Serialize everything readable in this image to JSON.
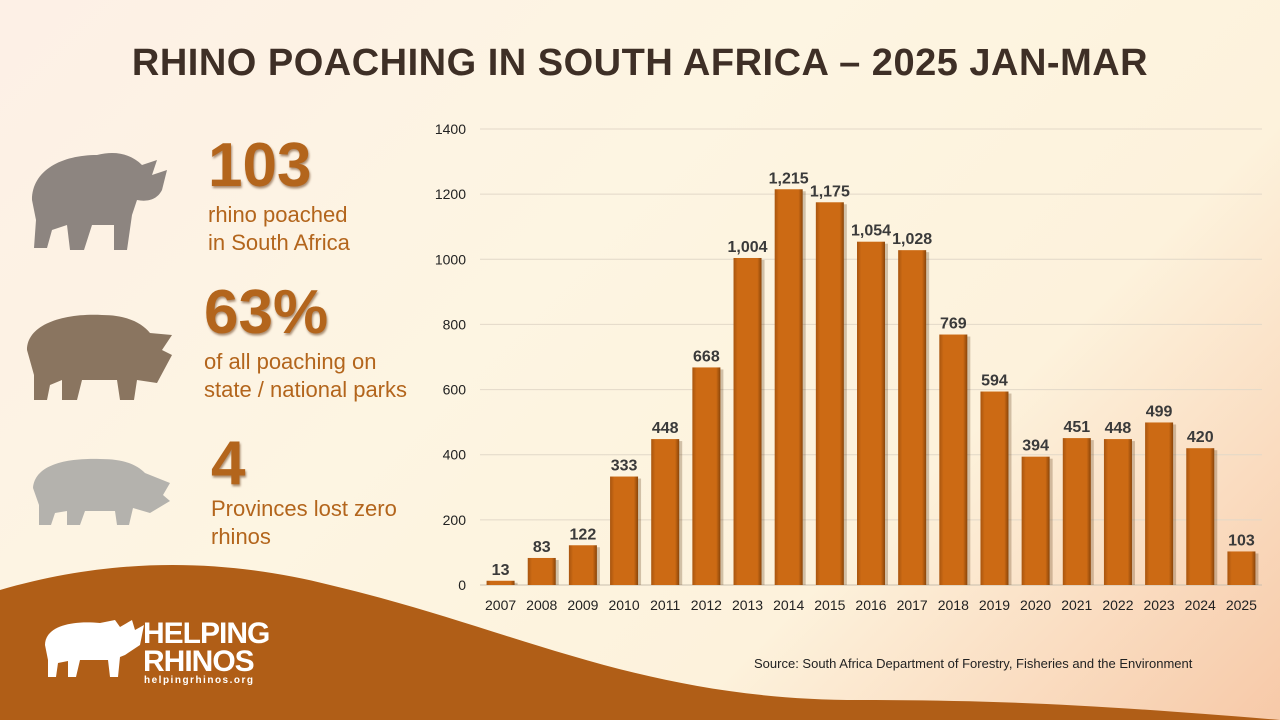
{
  "title": "RHINO POACHING IN SOUTH AFRICA – 2025 JAN-MAR",
  "stats": [
    {
      "value": "103",
      "line1": "rhino poached",
      "line2": "in South Africa"
    },
    {
      "value": "63%",
      "line1": "of all poaching on",
      "line2": "state / national parks"
    },
    {
      "value": "4",
      "line1": "Provinces lost zero",
      "line2": "rhinos"
    }
  ],
  "logo": {
    "line1": "HELPING",
    "line2": "RHINOS",
    "url": "helpingrhinos.org"
  },
  "source": "Source: South Africa Department of Forestry, Fisheries and the Environment",
  "colors": {
    "bar": "#cc6a14",
    "accent": "#b3651c",
    "wave": "#b05e17",
    "title": "#3e2f26"
  },
  "chart_data": {
    "type": "bar",
    "categories": [
      "2007",
      "2008",
      "2009",
      "2010",
      "2011",
      "2012",
      "2013",
      "2014",
      "2015",
      "2016",
      "2017",
      "2018",
      "2019",
      "2020",
      "2021",
      "2022",
      "2023",
      "2024",
      "2025"
    ],
    "values": [
      13,
      83,
      122,
      333,
      448,
      668,
      1004,
      1215,
      1175,
      1054,
      1028,
      769,
      594,
      394,
      451,
      448,
      499,
      420,
      103
    ],
    "data_labels": [
      "13",
      "83",
      "122",
      "333",
      "448",
      "668",
      "1,004",
      "1,215",
      "1,175",
      "1,054",
      "1,028",
      "769",
      "594",
      "394",
      "451",
      "448",
      "499",
      "420",
      "103"
    ],
    "ylim": [
      0,
      1400
    ],
    "yticks": [
      0,
      200,
      400,
      600,
      800,
      1000,
      1200,
      1400
    ],
    "grid": true
  }
}
